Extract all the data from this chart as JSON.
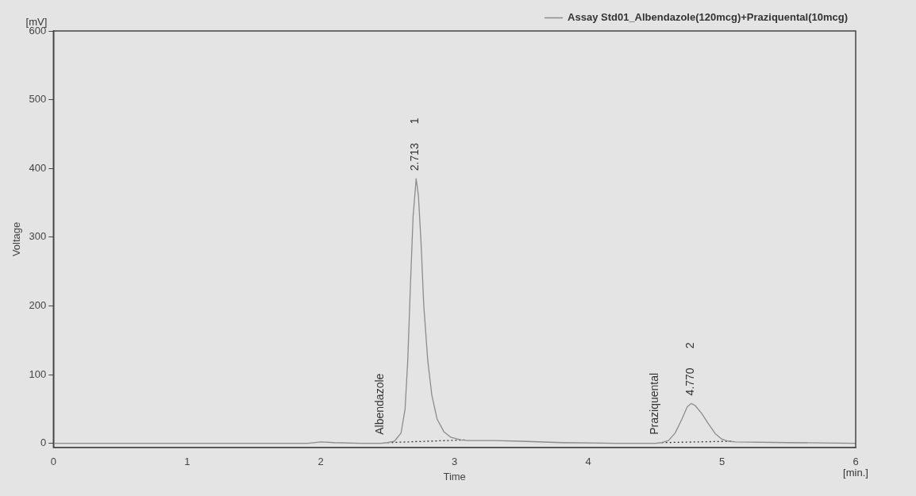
{
  "chart_data": {
    "type": "line",
    "xlabel": "Time",
    "ylabel": "Voltage",
    "xlim": [
      0,
      6
    ],
    "xticks": [
      0,
      1,
      2,
      3,
      4,
      5,
      6
    ],
    "ylim": [
      -6,
      600
    ],
    "yticks": [
      0,
      100,
      200,
      300,
      400,
      500,
      600
    ],
    "grid": false,
    "legend": "top right",
    "marker": "none",
    "series": [
      {
        "name": "Assay Std01_Albendazole(120mcg)+Praziquental(10mcg)",
        "color": "#8c8c8c",
        "line_style": "solid",
        "x": [
          0,
          0.5,
          1,
          1.5,
          1.9,
          2.0,
          2.1,
          2.3,
          2.45,
          2.5,
          2.55,
          2.6,
          2.63,
          2.65,
          2.67,
          2.69,
          2.713,
          2.73,
          2.75,
          2.77,
          2.8,
          2.83,
          2.87,
          2.92,
          2.97,
          3.05,
          3.1,
          3.3,
          3.5,
          3.8,
          4.2,
          4.5,
          4.55,
          4.6,
          4.65,
          4.7,
          4.74,
          4.77,
          4.8,
          4.85,
          4.9,
          4.95,
          5.0,
          5.05,
          5.1,
          5.5,
          6
        ],
        "values": [
          0,
          0,
          0,
          0,
          0,
          2,
          1,
          0,
          0,
          1,
          3,
          15,
          50,
          120,
          230,
          330,
          385,
          360,
          290,
          200,
          120,
          70,
          35,
          17,
          9,
          5,
          4,
          4,
          3,
          1,
          0,
          0,
          1,
          4,
          15,
          35,
          53,
          58,
          55,
          43,
          28,
          14,
          6,
          3,
          2,
          1,
          0
        ]
      },
      {
        "color": "#333333",
        "line_style": "dotted",
        "x": [
          2.5,
          3.09
        ],
        "values": [
          1,
          5
        ]
      },
      {
        "color": "#333333",
        "line_style": "dotted",
        "x": [
          4.55,
          5.07
        ],
        "values": [
          1,
          3
        ]
      }
    ],
    "annotations": [
      "[mV]",
      "[min.]",
      {
        "text": "Albendazole",
        "x": 2.5,
        "y": 1
      },
      {
        "text": "2.713",
        "x": 2.713,
        "y": 385
      },
      "1",
      {
        "text": "Praziquental",
        "x": 4.55,
        "y": 1
      },
      {
        "text": "4.770",
        "x": 4.77,
        "y": 58
      },
      "2"
    ]
  }
}
